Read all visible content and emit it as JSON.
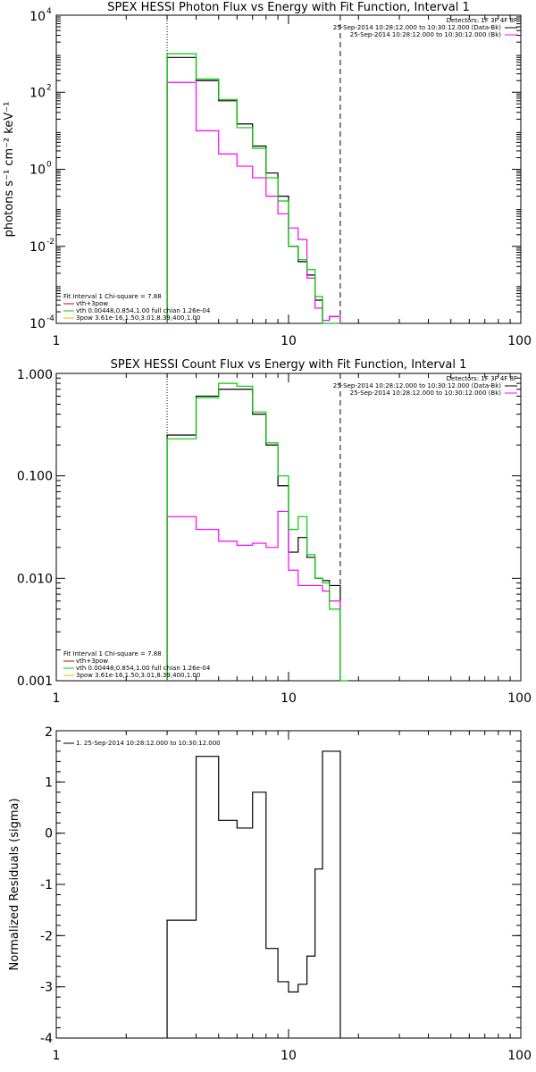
{
  "chart_data": [
    {
      "type": "line",
      "step": true,
      "title": "SPEX HESSI Photon Flux vs Energy with Fit Function, Interval 1",
      "xlabel": "",
      "ylabel": "photons s⁻¹ cm⁻² keV⁻¹",
      "xscale": "log",
      "yscale": "log",
      "xlim": [
        1,
        100
      ],
      "ylim": [
        0.0001,
        10000
      ],
      "xticks": [
        {
          "v": 1,
          "label": "1"
        },
        {
          "v": 10,
          "label": "10"
        },
        {
          "v": 100,
          "label": "100"
        }
      ],
      "yticks": [
        {
          "v": 0.0001,
          "base": "10",
          "exp": "-4"
        },
        {
          "v": 0.01,
          "base": "10",
          "exp": "-2"
        },
        {
          "v": 1,
          "base": "10",
          "exp": "0"
        },
        {
          "v": 100,
          "base": "10",
          "exp": "2"
        },
        {
          "v": 10000,
          "base": "10",
          "exp": "4"
        }
      ],
      "vlines": [
        {
          "x": 3.0,
          "style": "dotted",
          "color": "#000000"
        },
        {
          "x": 16.7,
          "style": "dashed",
          "color": "#000000"
        }
      ],
      "edges": [
        3.0,
        4.0,
        5.0,
        6.0,
        7.0,
        8.0,
        9.0,
        10.0,
        11.0,
        12.0,
        13.0,
        14.0,
        15.0,
        16.7
      ],
      "series": [
        {
          "color": "#000000",
          "values": [
            800,
            200,
            60,
            15,
            4,
            0.8,
            0.2,
            0.01,
            0.004,
            0.0018,
            0.0004,
            0.00012,
            0.00015
          ]
        },
        {
          "color": "#ff00ff",
          "values": [
            180,
            10,
            2.5,
            1.2,
            0.6,
            0.2,
            0.07,
            0.03,
            0.015,
            0.0015,
            0.00025,
            0.00012,
            0.00015
          ]
        },
        {
          "color": "#00cc00",
          "values": [
            1000,
            220,
            65,
            12,
            3.5,
            0.6,
            0.15,
            0.01,
            0.0045,
            0.0025,
            0.0005,
            8e-05,
            7e-05
          ]
        }
      ],
      "legend_tr": {
        "header": "Detectors: 1F 3F 4F 8F",
        "entries": [
          {
            "text": "25-Sep-2014 10:28:12.000 to 10:30:12.000 (Data-Bk)",
            "color": "#000000"
          },
          {
            "text": "25-Sep-2014 10:28:12.000 to 10:30:12.000 (Bk)",
            "color": "#ff00ff"
          }
        ]
      },
      "legend_bl": {
        "header": "Fit Interval 1    Chi-square = 7.88",
        "entries": [
          {
            "text": "vth+3pow",
            "color": "#cc0000"
          },
          {
            "text": "vth 0.00448,0.854,1.00  full chian 1.26e-04",
            "color": "#00cc00"
          },
          {
            "text": "3pow 3.61e-16,1.50,3.01,8.39,400,1.00",
            "color": "#cccc00"
          }
        ]
      }
    },
    {
      "type": "line",
      "step": true,
      "title": "SPEX HESSI Count Flux vs Energy with Fit Function, Interval 1",
      "xlabel": "",
      "ylabel": "",
      "xscale": "log",
      "yscale": "log",
      "xlim": [
        1,
        100
      ],
      "ylim": [
        0.001,
        1
      ],
      "xticks": [
        {
          "v": 1,
          "label": "1"
        },
        {
          "v": 10,
          "label": "10"
        },
        {
          "v": 100,
          "label": "100"
        }
      ],
      "yticks": [
        {
          "v": 0.001,
          "label": "0.001"
        },
        {
          "v": 0.01,
          "label": "0.010"
        },
        {
          "v": 0.1,
          "label": "0.100"
        },
        {
          "v": 1,
          "label": "1.000"
        }
      ],
      "vlines": [
        {
          "x": 3.0,
          "style": "dotted",
          "color": "#000000"
        },
        {
          "x": 16.7,
          "style": "dashed",
          "color": "#000000"
        }
      ],
      "edges": [
        3.0,
        4.0,
        5.0,
        6.0,
        7.0,
        8.0,
        9.0,
        10.0,
        11.0,
        12.0,
        13.0,
        14.0,
        15.0,
        16.7,
        18.0
      ],
      "series": [
        {
          "color": "#000000",
          "values": [
            0.25,
            0.6,
            0.7,
            0.7,
            0.4,
            0.2,
            0.08,
            0.018,
            0.025,
            0.016,
            0.01,
            0.0095,
            0.0085
          ]
        },
        {
          "color": "#ff00ff",
          "values": [
            0.04,
            0.03,
            0.023,
            0.021,
            0.022,
            0.02,
            0.045,
            0.012,
            0.0085,
            0.0085,
            0.0085,
            0.0075,
            0.006
          ]
        },
        {
          "color": "#00cc00",
          "values": [
            0.23,
            0.58,
            0.8,
            0.75,
            0.42,
            0.21,
            0.1,
            0.03,
            0.04,
            0.017,
            0.01,
            0.009,
            0.005,
            0.001
          ]
        }
      ],
      "legend_tr": {
        "header": "Detectors: 1F 3F 4F 8F",
        "entries": [
          {
            "text": "25-Sep-2014 10:28:12.000 to 10:30:12.000 (Data-Bk)",
            "color": "#000000"
          },
          {
            "text": "25-Sep-2014 10:28:12.000 to 10:30:12.000 (Bk)",
            "color": "#ff00ff"
          }
        ]
      },
      "legend_bl": {
        "header": "Fit Interval 1    Chi-square = 7.88",
        "entries": [
          {
            "text": "vth+3pow",
            "color": "#cc0000"
          },
          {
            "text": "vth 0.00448,0.854,1.00  full chian 1.26e-04",
            "color": "#00cc00"
          },
          {
            "text": "3pow 3.61e-16,1.50,3.01,8.39,400,1.00",
            "color": "#cccc00"
          }
        ]
      }
    },
    {
      "type": "line",
      "step": true,
      "title": "",
      "xlabel": "",
      "ylabel": "Normalized Residuals (sigma)",
      "xscale": "log",
      "yscale": "linear",
      "xlim": [
        1,
        100
      ],
      "ylim": [
        -4,
        2
      ],
      "xticks": [
        {
          "v": 1,
          "label": "1"
        },
        {
          "v": 10,
          "label": "10"
        },
        {
          "v": 100,
          "label": "100"
        }
      ],
      "yticks": [
        {
          "v": -4,
          "label": "-4"
        },
        {
          "v": -3,
          "label": "-3"
        },
        {
          "v": -2,
          "label": "-2"
        },
        {
          "v": -1,
          "label": "-1"
        },
        {
          "v": 0,
          "label": "0"
        },
        {
          "v": 1,
          "label": "1"
        },
        {
          "v": 2,
          "label": "2"
        }
      ],
      "vlines": [],
      "edges": [
        3.0,
        4.0,
        5.0,
        6.0,
        7.0,
        8.0,
        9.0,
        10.0,
        11.0,
        12.0,
        13.0,
        14.0,
        15.0,
        16.7
      ],
      "drop_to_bottom": true,
      "series": [
        {
          "color": "#000000",
          "values": [
            -1.7,
            1.5,
            0.25,
            0.1,
            0.8,
            -2.25,
            -2.9,
            -3.1,
            -2.95,
            -2.4,
            -0.7,
            1.6,
            1.6
          ]
        }
      ],
      "legend_tr": null,
      "legend_bl": null,
      "legend_tl": {
        "entries": [
          {
            "text": "1. 25-Sep-2014 10:28:12.000 to 10:30:12.000",
            "color": "#000000"
          }
        ]
      }
    }
  ]
}
